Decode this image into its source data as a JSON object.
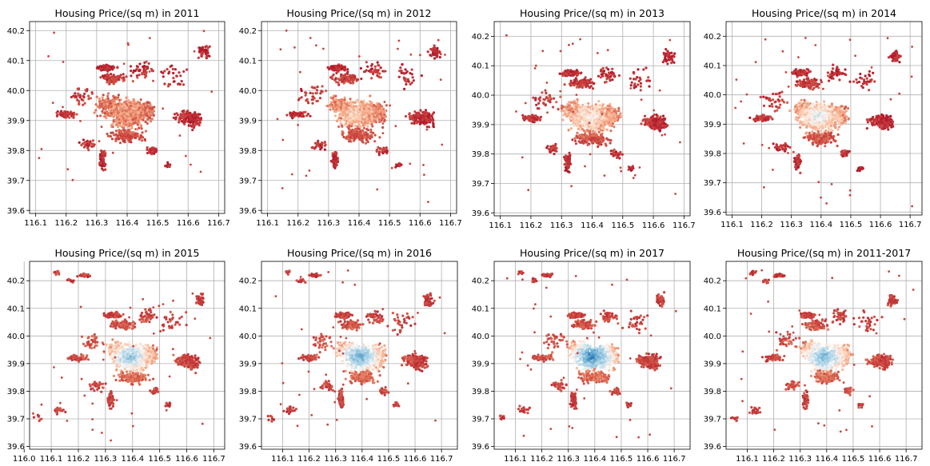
{
  "colormap": "RdBu_r",
  "colors": {
    "low": "#2166ac",
    "mid": "#f7f7f7",
    "high": "#b2182b"
  },
  "chart_data": [
    {
      "type": "scatter",
      "title": "Housing Price/(sq m) in 2011",
      "year": "2011",
      "xlim": [
        116.08,
        116.72
      ],
      "ylim": [
        39.59,
        40.23
      ],
      "x_ticks": [
        "116.1",
        "116.2",
        "116.3",
        "116.4",
        "116.5",
        "116.6",
        "116.7"
      ],
      "y_ticks": [
        "39.6",
        "39.7",
        "39.8",
        "39.9",
        "40.0",
        "40.1",
        "40.2"
      ],
      "grid": true,
      "center_price_level": 0.72
    },
    {
      "type": "scatter",
      "title": "Housing Price/(sq m) in 2012",
      "year": "2012",
      "xlim": [
        116.08,
        116.72
      ],
      "ylim": [
        39.59,
        40.23
      ],
      "x_ticks": [
        "116.1",
        "116.2",
        "116.3",
        "116.4",
        "116.5",
        "116.6",
        "116.7"
      ],
      "y_ticks": [
        "39.6",
        "39.7",
        "39.8",
        "39.9",
        "40.0",
        "40.1",
        "40.2"
      ],
      "grid": true,
      "center_price_level": 0.62
    },
    {
      "type": "scatter",
      "title": "Housing Price/(sq m) in 2013",
      "year": "2013",
      "xlim": [
        116.08,
        116.72
      ],
      "ylim": [
        39.59,
        40.25
      ],
      "x_ticks": [
        "116.1",
        "116.2",
        "116.3",
        "116.4",
        "116.5",
        "116.6",
        "116.7"
      ],
      "y_ticks": [
        "39.6",
        "39.7",
        "39.8",
        "39.9",
        "40.0",
        "40.1",
        "40.2"
      ],
      "grid": true,
      "center_price_level": 0.52
    },
    {
      "type": "scatter",
      "title": "Housing Price/(sq m) in 2014",
      "year": "2014",
      "xlim": [
        116.08,
        116.74
      ],
      "ylim": [
        39.59,
        40.25
      ],
      "x_ticks": [
        "116.1",
        "116.2",
        "116.3",
        "116.4",
        "116.5",
        "116.6",
        "116.7"
      ],
      "y_ticks": [
        "39.6",
        "39.7",
        "39.8",
        "39.9",
        "40.0",
        "40.1",
        "40.2"
      ],
      "grid": true,
      "center_price_level": 0.45
    },
    {
      "type": "scatter",
      "title": "Housing Price/(sq m) in 2015",
      "year": "2015",
      "xlim": [
        116.02,
        116.74
      ],
      "ylim": [
        39.59,
        40.27
      ],
      "x_ticks": [
        "116.0",
        "116.1",
        "116.2",
        "116.3",
        "116.4",
        "116.5",
        "116.6",
        "116.7"
      ],
      "y_ticks": [
        "39.6",
        "39.7",
        "39.8",
        "39.9",
        "40.0",
        "40.1",
        "40.2"
      ],
      "grid": true,
      "center_price_level": 0.3
    },
    {
      "type": "scatter",
      "title": "Housing Price/(sq m) in 2016",
      "year": "2016",
      "xlim": [
        116.02,
        116.76
      ],
      "ylim": [
        39.59,
        40.27
      ],
      "x_ticks": [
        "116.1",
        "116.2",
        "116.3",
        "116.4",
        "116.5",
        "116.6",
        "116.7"
      ],
      "y_ticks": [
        "39.6",
        "39.7",
        "39.8",
        "39.9",
        "40.0",
        "40.1",
        "40.2"
      ],
      "grid": true,
      "center_price_level": 0.2
    },
    {
      "type": "scatter",
      "title": "Housing Price/(sq m) in 2017",
      "year": "2017",
      "xlim": [
        116.02,
        116.76
      ],
      "ylim": [
        39.59,
        40.27
      ],
      "x_ticks": [
        "116.1",
        "116.2",
        "116.3",
        "116.4",
        "116.5",
        "116.6",
        "116.7"
      ],
      "y_ticks": [
        "39.6",
        "39.7",
        "39.8",
        "39.9",
        "40.0",
        "40.1",
        "40.2"
      ],
      "grid": true,
      "center_price_level": 0.08
    },
    {
      "type": "scatter",
      "title": "Housing Price/(sq m) in 2011-2017",
      "year": "2011-2017",
      "xlim": [
        116.02,
        116.76
      ],
      "ylim": [
        39.59,
        40.27
      ],
      "x_ticks": [
        "116.1",
        "116.2",
        "116.3",
        "116.4",
        "116.5",
        "116.6",
        "116.7"
      ],
      "y_ticks": [
        "39.6",
        "39.7",
        "39.8",
        "39.9",
        "40.0",
        "40.1",
        "40.2"
      ],
      "grid": true,
      "center_price_level": 0.22
    }
  ]
}
